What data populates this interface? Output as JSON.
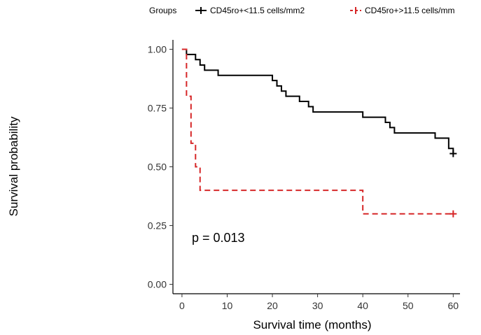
{
  "chart_data": {
    "type": "line",
    "xlabel": "Survival time (months)",
    "ylabel": "Survival probability",
    "xlim": [
      -2,
      61.5
    ],
    "ylim": [
      -0.04,
      1.04
    ],
    "x_ticks": [
      0,
      10,
      20,
      30,
      40,
      50,
      60
    ],
    "y_ticks": [
      0.0,
      0.25,
      0.5,
      0.75,
      1.0
    ],
    "x_tick_labels": [
      "0",
      "10",
      "20",
      "30",
      "40",
      "50",
      "60"
    ],
    "y_tick_labels": [
      "0.00",
      "0.25",
      "0.50",
      "0.75",
      "1.00"
    ],
    "grid": false,
    "legend": {
      "placement": "top",
      "title": "Groups",
      "entries": [
        "CD45ro+<11.5 cells/mm2",
        "CD45ro+>11.5 cells/mm"
      ]
    },
    "annotation": "p = 0.013",
    "series": [
      {
        "name": "CD45ro+<11.5 cells/mm2",
        "color": "#000000",
        "dash": "solid",
        "step_x": [
          0,
          1,
          3,
          4,
          5,
          8,
          20,
          21,
          22,
          23,
          26,
          28,
          29,
          40,
          45,
          46,
          47,
          56,
          59,
          60
        ],
        "step_y": [
          1.0,
          0.978,
          0.956,
          0.933,
          0.911,
          0.889,
          0.867,
          0.844,
          0.822,
          0.8,
          0.778,
          0.756,
          0.733,
          0.711,
          0.689,
          0.667,
          0.644,
          0.622,
          0.578,
          0.556
        ],
        "censor_x": [
          60
        ],
        "censor_y": [
          0.556
        ]
      },
      {
        "name": "CD45ro+>11.5 cells/mm",
        "color": "#D62728",
        "dash": "dashed",
        "step_x": [
          0,
          1,
          2,
          3,
          4,
          40,
          60
        ],
        "step_y": [
          1.0,
          0.8,
          0.6,
          0.5,
          0.4,
          0.3,
          0.3
        ],
        "censor_x": [
          60
        ],
        "censor_y": [
          0.3
        ]
      }
    ]
  }
}
